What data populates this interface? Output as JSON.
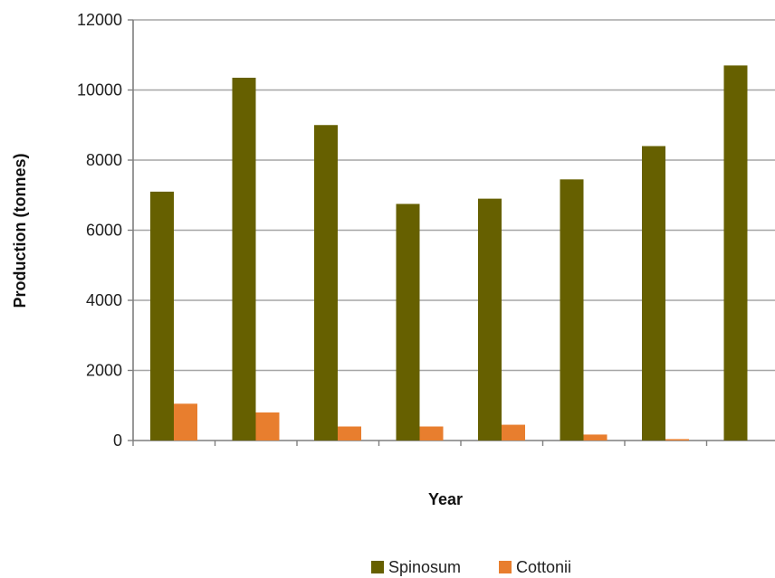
{
  "chart_data": {
    "type": "bar",
    "title": "",
    "xlabel": "Year",
    "ylabel": "Production (tonnes)",
    "ylim": [
      0,
      12000
    ],
    "yticks": [
      0,
      2000,
      4000,
      6000,
      8000,
      10000,
      12000
    ],
    "categories": [
      "",
      "",
      "",
      "",
      "",
      "",
      "",
      ""
    ],
    "grid": "horizontal",
    "legend_position": "bottom",
    "series": [
      {
        "name": "Spinosum",
        "color": "#666000",
        "values": [
          7100,
          10350,
          9000,
          6750,
          6900,
          7450,
          8400,
          10700
        ]
      },
      {
        "name": "Cottonii",
        "color": "#E87E2E",
        "values": [
          1050,
          800,
          400,
          400,
          450,
          170,
          40,
          0
        ]
      }
    ]
  }
}
